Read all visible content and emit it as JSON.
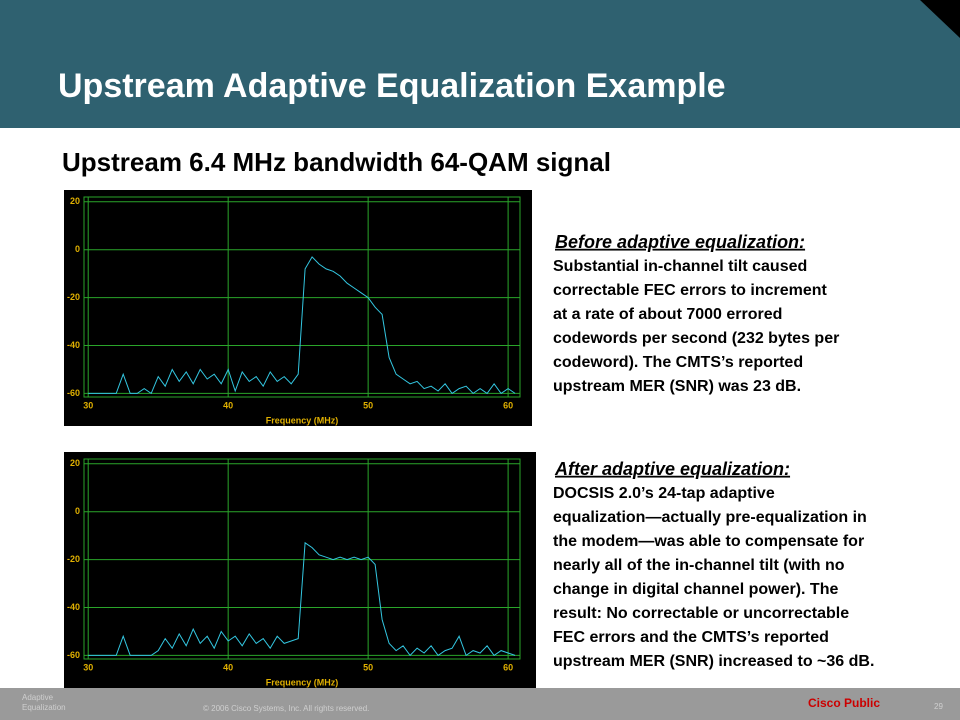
{
  "header": {
    "title": "Upstream Adaptive Equalization Example"
  },
  "subtitle": "Upstream 6.4 MHz bandwidth 64-QAM signal",
  "before": {
    "heading": "Before adaptive equalization:",
    "lines": [
      "Substantial in-channel tilt caused",
      "correctable FEC errors to increment",
      "at a rate of about 7000 errored",
      "codewords per second (232 bytes per",
      "codeword). The CMTS’s reported",
      "upstream MER (SNR) was 23 dB."
    ]
  },
  "after": {
    "heading": "After adaptive equalization:",
    "lines": [
      "DOCSIS 2.0’s 24-tap adaptive",
      "equalization—actually pre-equalization in",
      "the modem—was able to compensate for",
      "nearly all of the in-channel tilt (with no",
      "change in digital channel power). The",
      "result: No correctable or uncorrectable",
      "FEC errors and the CMTS’s reported",
      "upstream MER (SNR) increased to ~36 dB."
    ]
  },
  "footer": {
    "section": [
      "Adaptive",
      "Equalization"
    ],
    "copyright": "© 2006 Cisco Systems, Inc. All rights reserved.",
    "label": "Cisco Public",
    "page": "29"
  },
  "chart_data": [
    {
      "type": "line",
      "x_label": "Frequency (MHz)",
      "xlim": [
        29.7,
        60.85
      ],
      "ylim": [
        -61.5,
        22
      ],
      "xticks": [
        30,
        40,
        50,
        60
      ],
      "yticks": [
        20,
        0,
        -20,
        -40,
        -60
      ],
      "grid": true,
      "color": "#33c6e0",
      "x": [
        30,
        30.5,
        31,
        31.5,
        32,
        32.5,
        33,
        33.5,
        34,
        34.5,
        35,
        35.5,
        36,
        36.5,
        37,
        37.5,
        38,
        38.5,
        39,
        39.5,
        40,
        40.5,
        41,
        41.5,
        42,
        42.5,
        43,
        43.5,
        44,
        44.5,
        45,
        45.5,
        46,
        46.5,
        47,
        47.5,
        48,
        48.5,
        49,
        49.5,
        50,
        50.5,
        51,
        51.5,
        52,
        52.5,
        53,
        53.5,
        54,
        54.5,
        55,
        55.5,
        56,
        56.5,
        57,
        57.5,
        58,
        58.5,
        59,
        59.5,
        60,
        60.5
      ],
      "values": [
        -60,
        -60,
        -60,
        -60,
        -60,
        -52,
        -60,
        -60,
        -58,
        -60,
        -53,
        -57,
        -50,
        -55,
        -51,
        -56,
        -50,
        -54,
        -52,
        -56,
        -50,
        -59,
        -51,
        -55,
        -53,
        -57,
        -51,
        -55,
        -53,
        -56,
        -52,
        -8,
        -3,
        -6,
        -8,
        -9,
        -11,
        -14,
        -16,
        -18,
        -20,
        -24,
        -27,
        -45,
        -52,
        -54,
        -56,
        -55,
        -58,
        -57,
        -59,
        -56,
        -60,
        -58,
        -57,
        -60,
        -58,
        -60,
        -56,
        -60,
        -58,
        -60
      ]
    },
    {
      "type": "line",
      "x_label": "Frequency (MHz)",
      "xlim": [
        29.7,
        60.85
      ],
      "ylim": [
        -61.5,
        22
      ],
      "xticks": [
        30,
        40,
        50,
        60
      ],
      "yticks": [
        20,
        0,
        -20,
        -40,
        -60
      ],
      "grid": true,
      "color": "#33c6e0",
      "x": [
        30,
        30.5,
        31,
        31.5,
        32,
        32.5,
        33,
        33.5,
        34,
        34.5,
        35,
        35.5,
        36,
        36.5,
        37,
        37.5,
        38,
        38.5,
        39,
        39.5,
        40,
        40.5,
        41,
        41.5,
        42,
        42.5,
        43,
        43.5,
        44,
        44.5,
        45,
        45.5,
        46,
        46.5,
        47,
        47.5,
        48,
        48.5,
        49,
        49.5,
        50,
        50.5,
        51,
        51.5,
        52,
        52.5,
        53,
        53.5,
        54,
        54.5,
        55,
        55.5,
        56,
        56.5,
        57,
        57.5,
        58,
        58.5,
        59,
        59.5,
        60,
        60.5
      ],
      "values": [
        -60,
        -60,
        -60,
        -60,
        -60,
        -52,
        -60,
        -60,
        -60,
        -60,
        -58,
        -53,
        -57,
        -51,
        -56,
        -49,
        -55,
        -52,
        -57,
        -50,
        -54,
        -52,
        -56,
        -51,
        -55,
        -53,
        -57,
        -52,
        -55,
        -54,
        -53,
        -13,
        -15,
        -18,
        -19,
        -20,
        -19,
        -20,
        -19,
        -20,
        -19,
        -22,
        -45,
        -55,
        -58,
        -56,
        -60,
        -57,
        -59,
        -56,
        -60,
        -58,
        -57,
        -52,
        -60,
        -58,
        -59,
        -56,
        -60,
        -58,
        -59,
        -60
      ]
    }
  ]
}
